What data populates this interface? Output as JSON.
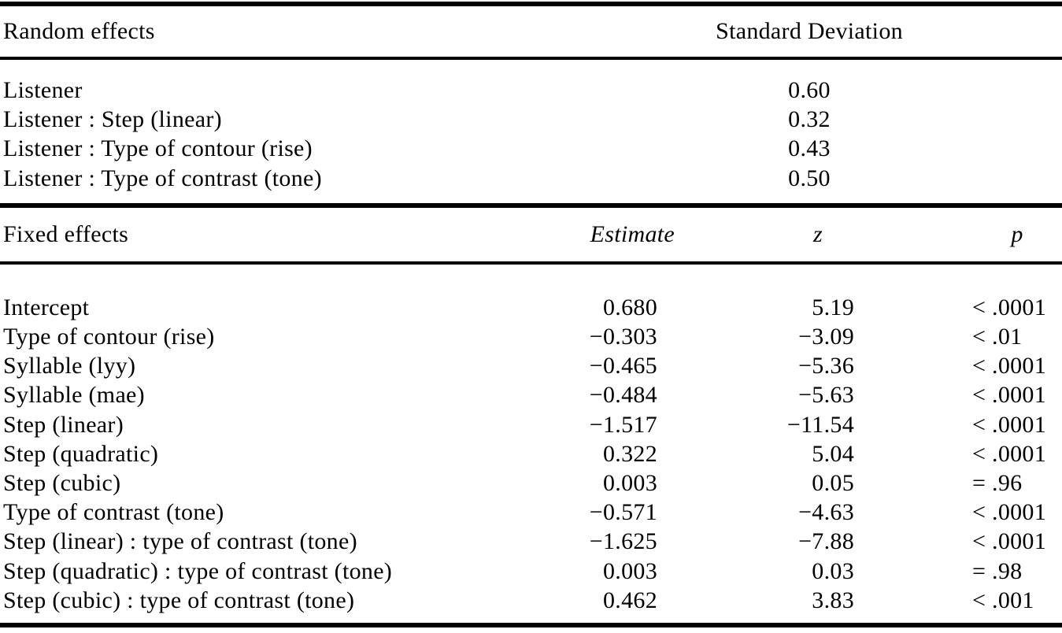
{
  "table": {
    "random_effects": {
      "header": {
        "label": "Random effects",
        "sd": "Standard Deviation"
      },
      "rows": [
        {
          "label": "Listener",
          "sd": "0.60"
        },
        {
          "label": "Listener : Step (linear)",
          "sd": "0.32"
        },
        {
          "label": "Listener : Type of contour (rise)",
          "sd": "0.43"
        },
        {
          "label": "Listener : Type of contrast (tone)",
          "sd": "0.50"
        }
      ]
    },
    "fixed_effects": {
      "header": {
        "label": "Fixed effects",
        "estimate": "Estimate",
        "z": "z",
        "p": "p"
      },
      "rows": [
        {
          "label": "Intercept",
          "estimate": "0.680",
          "z": "5.19",
          "p": "< .0001"
        },
        {
          "label": "Type of contour (rise)",
          "estimate": "−0.303",
          "z": "−3.09",
          "p": "< .01"
        },
        {
          "label": "Syllable (lyy)",
          "estimate": "−0.465",
          "z": "−5.36",
          "p": "< .0001"
        },
        {
          "label": "Syllable (mae)",
          "estimate": "−0.484",
          "z": "−5.63",
          "p": "< .0001"
        },
        {
          "label": "Step (linear)",
          "estimate": "−1.517",
          "z": "−11.54",
          "p": "< .0001"
        },
        {
          "label": "Step (quadratic)",
          "estimate": "0.322",
          "z": "5.04",
          "p": "< .0001"
        },
        {
          "label": "Step (cubic)",
          "estimate": "0.003",
          "z": "0.05",
          "p": "= .96"
        },
        {
          "label": "Type of contrast (tone)",
          "estimate": "−0.571",
          "z": "−4.63",
          "p": "< .0001"
        },
        {
          "label": "Step (linear) : type of contrast (tone)",
          "estimate": "−1.625",
          "z": "−7.88",
          "p": "< .0001"
        },
        {
          "label": "Step (quadratic) : type of contrast (tone)",
          "estimate": "0.003",
          "z": "0.03",
          "p": "= .98"
        },
        {
          "label": "Step (cubic) : type of contrast (tone)",
          "estimate": "0.462",
          "z": "3.83",
          "p": "< .001"
        }
      ]
    }
  }
}
